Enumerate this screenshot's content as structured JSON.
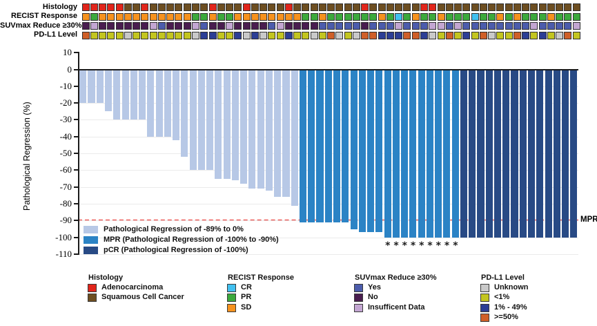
{
  "figure": {
    "y_axis_title": "Pathological Regression (%)",
    "y_ticks": [
      10,
      0,
      -10,
      -20,
      -30,
      -40,
      -50,
      -60,
      -70,
      -80,
      -90,
      -100,
      -110
    ],
    "mpr_line_label": "MPR"
  },
  "tracks": {
    "rows": [
      {
        "label": "Histology",
        "palette": {
          "A": "#e1251b",
          "S": "#6d4e21"
        },
        "values": [
          "A",
          "A",
          "A",
          "A",
          "A",
          "S",
          "S",
          "A",
          "S",
          "S",
          "S",
          "S",
          "S",
          "S",
          "S",
          "A",
          "S",
          "S",
          "S",
          "A",
          "S",
          "S",
          "S",
          "S",
          "A",
          "S",
          "S",
          "S",
          "S",
          "S",
          "S",
          "S",
          "S",
          "A",
          "S",
          "S",
          "S",
          "S",
          "S",
          "S",
          "A",
          "A",
          "S",
          "S",
          "S",
          "S",
          "S",
          "S",
          "S",
          "S",
          "S",
          "S",
          "S",
          "S",
          "S",
          "S",
          "S",
          "S",
          "S"
        ]
      },
      {
        "label": "RECIST Response",
        "palette": {
          "SD": "#f6921e",
          "PR": "#3ca93c",
          "CR": "#41c0f0"
        },
        "values": [
          "SD",
          "PR",
          "SD",
          "SD",
          "SD",
          "SD",
          "SD",
          "SD",
          "SD",
          "SD",
          "SD",
          "SD",
          "SD",
          "PR",
          "PR",
          "SD",
          "PR",
          "PR",
          "SD",
          "SD",
          "SD",
          "SD",
          "SD",
          "SD",
          "SD",
          "SD",
          "PR",
          "PR",
          "SD",
          "PR",
          "PR",
          "PR",
          "PR",
          "PR",
          "PR",
          "SD",
          "PR",
          "CR",
          "PR",
          "SD",
          "PR",
          "PR",
          "SD",
          "PR",
          "PR",
          "PR",
          "CR",
          "PR",
          "PR",
          "SD",
          "PR",
          "SD",
          "PR",
          "PR",
          "PR",
          "SD",
          "PR",
          "PR",
          "PR"
        ]
      },
      {
        "label": "SUVmax Reduce ≥30%",
        "palette": {
          "Y": "#4c5cac",
          "N": "#491d4f",
          "I": "#c3a6d2"
        },
        "values": [
          "N",
          "I",
          "N",
          "N",
          "N",
          "N",
          "N",
          "N",
          "I",
          "Y",
          "N",
          "N",
          "N",
          "I",
          "Y",
          "N",
          "N",
          "I",
          "N",
          "N",
          "N",
          "N",
          "Y",
          "I",
          "N",
          "N",
          "N",
          "N",
          "Y",
          "Y",
          "Y",
          "Y",
          "Y",
          "N",
          "Y",
          "Y",
          "Y",
          "I",
          "Y",
          "Y",
          "Y",
          "I",
          "I",
          "Y",
          "I",
          "Y",
          "Y",
          "Y",
          "Y",
          "Y",
          "Y",
          "Y",
          "Y",
          "I",
          "Y",
          "Y",
          "Y",
          "Y",
          "I"
        ]
      },
      {
        "label": "PD-L1 Level",
        "palette": {
          "U": "#c9c9c9",
          "L": "#c3c520",
          "M": "#2c3e95",
          "H": "#cf5f28"
        },
        "values": [
          "H",
          "L",
          "L",
          "L",
          "L",
          "U",
          "L",
          "L",
          "L",
          "L",
          "L",
          "L",
          "L",
          "U",
          "M",
          "M",
          "L",
          "L",
          "M",
          "U",
          "M",
          "U",
          "L",
          "L",
          "M",
          "L",
          "L",
          "U",
          "L",
          "H",
          "U",
          "L",
          "U",
          "H",
          "H",
          "M",
          "M",
          "M",
          "H",
          "H",
          "M",
          "U",
          "L",
          "H",
          "L",
          "M",
          "L",
          "H",
          "U",
          "L",
          "L",
          "H",
          "M",
          "L",
          "M",
          "L",
          "U",
          "H",
          "L"
        ]
      }
    ]
  },
  "chart_data": {
    "type": "bar",
    "title": "",
    "xlabel": "",
    "ylabel": "Pathological Regression (%)",
    "ylim": [
      -110,
      10
    ],
    "grid": "horizontal",
    "values": [
      -20,
      -20,
      -20,
      -25,
      -30,
      -30,
      -30,
      -30,
      -40,
      -40,
      -40,
      -42,
      -52,
      -60,
      -60,
      -60,
      -65,
      -65,
      -66,
      -68,
      -71,
      -71,
      -72,
      -76,
      -76,
      -81,
      -91,
      -91,
      -91,
      -91,
      -91,
      -91,
      -95,
      -97,
      -97,
      -97,
      -100,
      -100,
      -100,
      -100,
      -100,
      -100,
      -100,
      -100,
      -100,
      -100,
      -100,
      -100,
      -100,
      -100,
      -100,
      -100,
      -100,
      -100,
      -100,
      -100,
      -100,
      -100,
      -100
    ],
    "groups": [
      {
        "name": "Pathological Regression of -89% to 0%",
        "color": "#b7c8e6",
        "count": 26
      },
      {
        "name": "MPR (Pathological Regression of -100% to -90%)",
        "color": "#2b83c5",
        "count": 19
      },
      {
        "name": "pCR (Pathological Regression of -100%)",
        "color": "#284a85",
        "count": 14
      }
    ],
    "starred_bars": [
      37,
      38,
      39,
      40,
      41,
      42,
      43,
      44,
      45
    ],
    "star_symbol": "*",
    "reference_line": {
      "value": -90,
      "label": "MPR",
      "color": "#e62420",
      "style": "dashed"
    }
  },
  "plot_legend": {
    "items": [
      {
        "label": "Pathological Regression of -89% to 0%",
        "color": "#b7c8e6"
      },
      {
        "label": "MPR (Pathological Regression of -100% to -90%)",
        "color": "#2b83c5"
      },
      {
        "label": "pCR (Pathological Regression of -100%)",
        "color": "#284a85"
      }
    ]
  },
  "bottom_legends": [
    {
      "title": "Histology",
      "items": [
        {
          "label": "Adenocarcinoma",
          "color": "#e1251b"
        },
        {
          "label": "Squamous Cell Cancer",
          "color": "#6d4e21"
        }
      ]
    },
    {
      "title": "RECIST Response",
      "items": [
        {
          "label": "CR",
          "color": "#41c0f0"
        },
        {
          "label": "PR",
          "color": "#3ca93c"
        },
        {
          "label": "SD",
          "color": "#f6921e"
        }
      ]
    },
    {
      "title": "SUVmax Reduce ≥30%",
      "items": [
        {
          "label": "Yes",
          "color": "#4c5cac"
        },
        {
          "label": "No",
          "color": "#491d4f"
        },
        {
          "label": "Insufficent Data",
          "color": "#c3a6d2"
        }
      ]
    },
    {
      "title": "PD-L1 Level",
      "items": [
        {
          "label": "Unknown",
          "color": "#c9c9c9"
        },
        {
          "label": "<1%",
          "color": "#c3c520"
        },
        {
          "label": "1% - 49%",
          "color": "#2c3e95"
        },
        {
          "label": ">=50%",
          "color": "#cf5f28"
        }
      ]
    }
  ]
}
